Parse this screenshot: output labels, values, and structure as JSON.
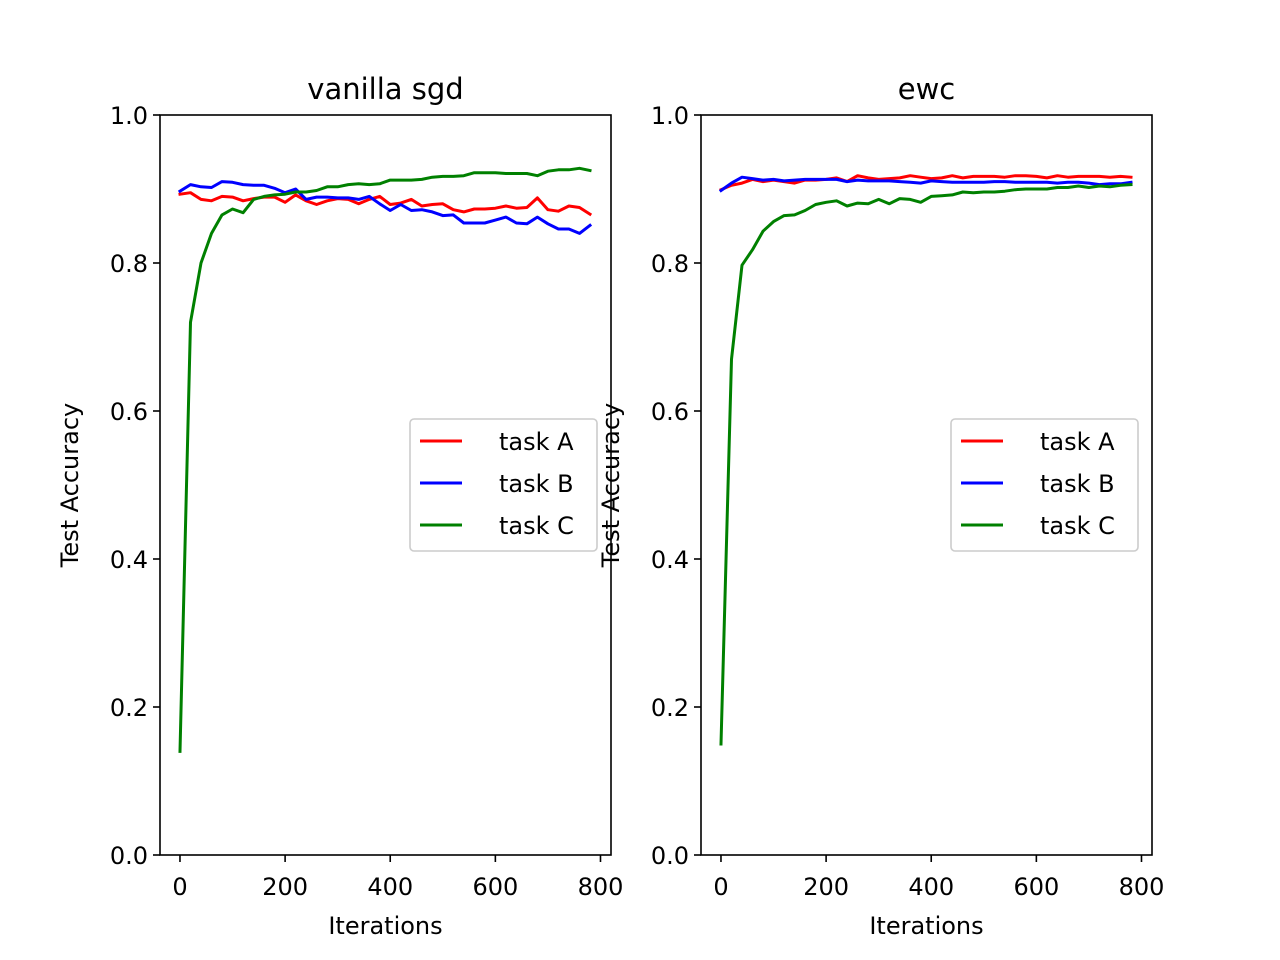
{
  "chart_data": [
    {
      "type": "line",
      "title": "vanilla sgd",
      "xlabel": "Iterations",
      "ylabel": "Test Accuracy",
      "xlim": [
        -38,
        820
      ],
      "ylim": [
        0.0,
        1.0
      ],
      "xticks": [
        0,
        200,
        400,
        600,
        800
      ],
      "xtick_labels": [
        "0",
        "200",
        "400",
        "600",
        "800"
      ],
      "yticks": [
        0.0,
        0.2,
        0.4,
        0.6,
        0.8,
        1.0
      ],
      "ytick_labels": [
        "0.0",
        "0.2",
        "0.4",
        "0.6",
        "0.8",
        "1.0"
      ],
      "grid": false,
      "legend_position": "center-right",
      "x": [
        0,
        20,
        40,
        60,
        80,
        100,
        120,
        140,
        160,
        180,
        200,
        220,
        240,
        260,
        280,
        300,
        320,
        340,
        360,
        380,
        400,
        420,
        440,
        460,
        480,
        500,
        520,
        540,
        560,
        580,
        600,
        620,
        640,
        660,
        680,
        700,
        720,
        740,
        760,
        780
      ],
      "series": [
        {
          "name": "task A",
          "color": "#ff0000",
          "values": [
            0.893,
            0.895,
            0.886,
            0.884,
            0.89,
            0.889,
            0.884,
            0.887,
            0.889,
            0.889,
            0.882,
            0.892,
            0.884,
            0.879,
            0.884,
            0.887,
            0.886,
            0.88,
            0.886,
            0.89,
            0.879,
            0.881,
            0.886,
            0.877,
            0.879,
            0.88,
            0.872,
            0.869,
            0.873,
            0.873,
            0.874,
            0.877,
            0.874,
            0.875,
            0.888,
            0.872,
            0.87,
            0.877,
            0.875,
            0.866
          ]
        },
        {
          "name": "task B",
          "color": "#0000ff",
          "values": [
            0.897,
            0.906,
            0.903,
            0.902,
            0.91,
            0.909,
            0.906,
            0.905,
            0.905,
            0.901,
            0.895,
            0.9,
            0.886,
            0.889,
            0.889,
            0.888,
            0.888,
            0.886,
            0.89,
            0.88,
            0.871,
            0.879,
            0.871,
            0.872,
            0.869,
            0.864,
            0.865,
            0.854,
            0.854,
            0.854,
            0.858,
            0.862,
            0.854,
            0.853,
            0.862,
            0.853,
            0.846,
            0.846,
            0.84,
            0.851
          ]
        },
        {
          "name": "task C",
          "color": "#008000",
          "values": [
            0.14,
            0.72,
            0.8,
            0.84,
            0.865,
            0.873,
            0.868,
            0.886,
            0.89,
            0.892,
            0.893,
            0.896,
            0.896,
            0.898,
            0.903,
            0.903,
            0.906,
            0.907,
            0.906,
            0.907,
            0.912,
            0.912,
            0.912,
            0.913,
            0.916,
            0.917,
            0.917,
            0.918,
            0.922,
            0.922,
            0.922,
            0.921,
            0.921,
            0.921,
            0.918,
            0.924,
            0.926,
            0.926,
            0.928,
            0.925
          ]
        }
      ]
    },
    {
      "type": "line",
      "title": "ewc",
      "xlabel": "Iterations",
      "ylabel": "Test Accuracy",
      "xlim": [
        -38,
        820
      ],
      "ylim": [
        0.0,
        1.0
      ],
      "xticks": [
        0,
        200,
        400,
        600,
        800
      ],
      "xtick_labels": [
        "0",
        "200",
        "400",
        "600",
        "800"
      ],
      "yticks": [
        0.0,
        0.2,
        0.4,
        0.6,
        0.8,
        1.0
      ],
      "ytick_labels": [
        "0.0",
        "0.2",
        "0.4",
        "0.6",
        "0.8",
        "1.0"
      ],
      "grid": false,
      "legend_position": "center-right",
      "x": [
        0,
        20,
        40,
        60,
        80,
        100,
        120,
        140,
        160,
        180,
        200,
        220,
        240,
        260,
        280,
        300,
        320,
        340,
        360,
        380,
        400,
        420,
        440,
        460,
        480,
        500,
        520,
        540,
        560,
        580,
        600,
        620,
        640,
        660,
        680,
        700,
        720,
        740,
        760,
        780
      ],
      "series": [
        {
          "name": "task A",
          "color": "#ff0000",
          "values": [
            0.899,
            0.905,
            0.908,
            0.913,
            0.91,
            0.912,
            0.91,
            0.908,
            0.912,
            0.912,
            0.913,
            0.915,
            0.91,
            0.918,
            0.915,
            0.913,
            0.914,
            0.915,
            0.918,
            0.916,
            0.914,
            0.915,
            0.918,
            0.915,
            0.917,
            0.917,
            0.917,
            0.916,
            0.918,
            0.918,
            0.917,
            0.915,
            0.918,
            0.916,
            0.917,
            0.917,
            0.917,
            0.916,
            0.917,
            0.916
          ]
        },
        {
          "name": "task B",
          "color": "#0000ff",
          "values": [
            0.898,
            0.908,
            0.916,
            0.914,
            0.912,
            0.913,
            0.911,
            0.912,
            0.913,
            0.913,
            0.913,
            0.913,
            0.91,
            0.912,
            0.911,
            0.911,
            0.911,
            0.91,
            0.909,
            0.908,
            0.911,
            0.91,
            0.909,
            0.909,
            0.909,
            0.909,
            0.91,
            0.91,
            0.909,
            0.909,
            0.909,
            0.909,
            0.908,
            0.909,
            0.909,
            0.908,
            0.906,
            0.907,
            0.907,
            0.909
          ]
        },
        {
          "name": "task C",
          "color": "#008000",
          "values": [
            0.15,
            0.67,
            0.797,
            0.818,
            0.843,
            0.856,
            0.864,
            0.865,
            0.871,
            0.879,
            0.882,
            0.884,
            0.877,
            0.881,
            0.88,
            0.886,
            0.88,
            0.887,
            0.886,
            0.882,
            0.89,
            0.891,
            0.892,
            0.896,
            0.895,
            0.896,
            0.896,
            0.897,
            0.899,
            0.9,
            0.9,
            0.9,
            0.902,
            0.902,
            0.904,
            0.902,
            0.904,
            0.903,
            0.905,
            0.906
          ]
        }
      ]
    }
  ]
}
